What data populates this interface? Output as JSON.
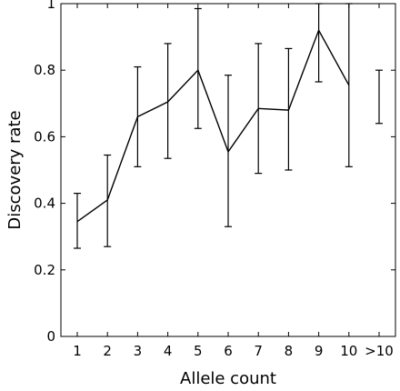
{
  "chart_data": {
    "type": "line",
    "title": "",
    "xlabel": "Allele count",
    "ylabel": "Discovery rate",
    "categories": [
      "1",
      "2",
      "3",
      "4",
      "5",
      "6",
      "7",
      "8",
      "9",
      "10",
      ">10"
    ],
    "yticks": [
      "0",
      "0.2",
      "0.4",
      "0.6",
      "0.8",
      "1"
    ],
    "ylim": [
      0,
      1
    ],
    "grid": false,
    "legend": "none",
    "series": [
      {
        "values": [
          0.345,
          0.41,
          0.66,
          0.705,
          0.8,
          0.555,
          0.685,
          0.68,
          0.92,
          0.755,
          null
        ],
        "error_low": [
          0.265,
          0.27,
          0.51,
          0.535,
          0.625,
          0.33,
          0.49,
          0.5,
          0.765,
          0.51,
          0.64
        ],
        "error_high": [
          0.43,
          0.545,
          0.81,
          0.88,
          0.985,
          0.785,
          0.88,
          0.865,
          1.0,
          1.0,
          0.8
        ]
      }
    ]
  }
}
